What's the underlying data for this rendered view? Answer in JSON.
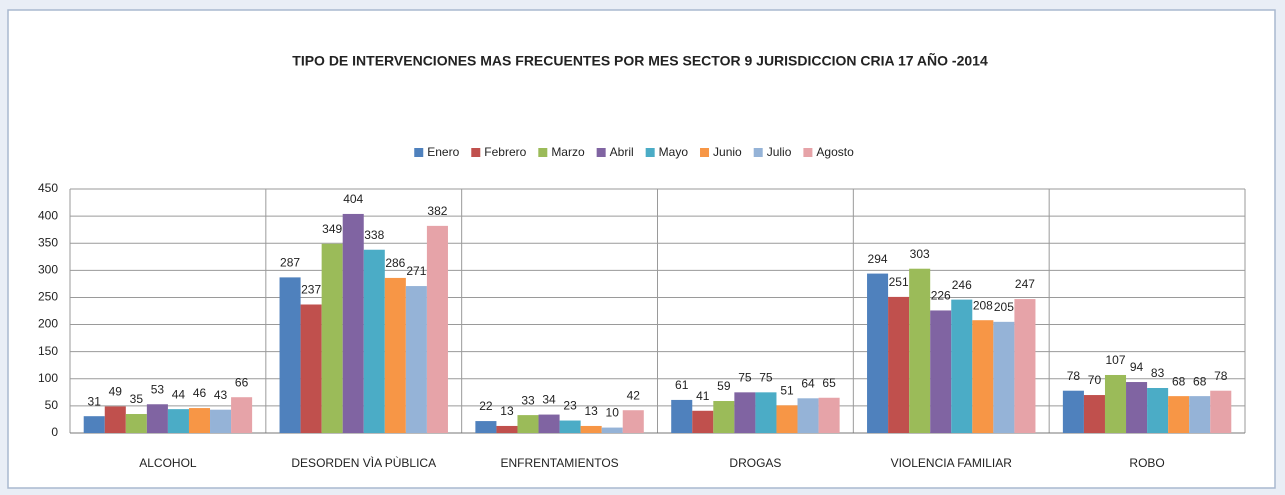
{
  "chart_data": {
    "type": "bar",
    "title": "TIPO DE INTERVENCIONES MAS FRECUENTES POR MES  SECTOR 9 JURISDICCION CRIA 17  AÑO -2014",
    "categories": [
      "ALCOHOL",
      "DESORDEN VÌA PÙBLICA",
      "ENFRENTAMIENTOS",
      "DROGAS",
      "VIOLENCIA FAMILIAR",
      "ROBO"
    ],
    "series": [
      {
        "name": "Enero",
        "color": "#4f81bd",
        "values": [
          31,
          287,
          22,
          61,
          294,
          78
        ]
      },
      {
        "name": "Febrero",
        "color": "#c0504d",
        "values": [
          49,
          237,
          13,
          41,
          251,
          70
        ]
      },
      {
        "name": "Marzo",
        "color": "#9bbb59",
        "values": [
          35,
          349,
          33,
          59,
          303,
          107
        ]
      },
      {
        "name": "Abril",
        "color": "#8064a2",
        "values": [
          53,
          404,
          34,
          75,
          226,
          94
        ]
      },
      {
        "name": "Mayo",
        "color": "#4bacc6",
        "values": [
          44,
          338,
          23,
          75,
          246,
          83
        ]
      },
      {
        "name": "Junio",
        "color": "#f79646",
        "values": [
          46,
          286,
          13,
          51,
          208,
          68
        ]
      },
      {
        "name": "Julio",
        "color": "#95b3d7",
        "values": [
          43,
          271,
          10,
          64,
          205,
          68
        ]
      },
      {
        "name": "Agosto",
        "color": "#e6a3a8",
        "values": [
          66,
          382,
          42,
          65,
          247,
          78
        ]
      }
    ],
    "ylim": [
      0,
      450
    ],
    "yticks": [
      0,
      50,
      100,
      150,
      200,
      250,
      300,
      350,
      400,
      450
    ],
    "grid": true,
    "legend": "top"
  }
}
